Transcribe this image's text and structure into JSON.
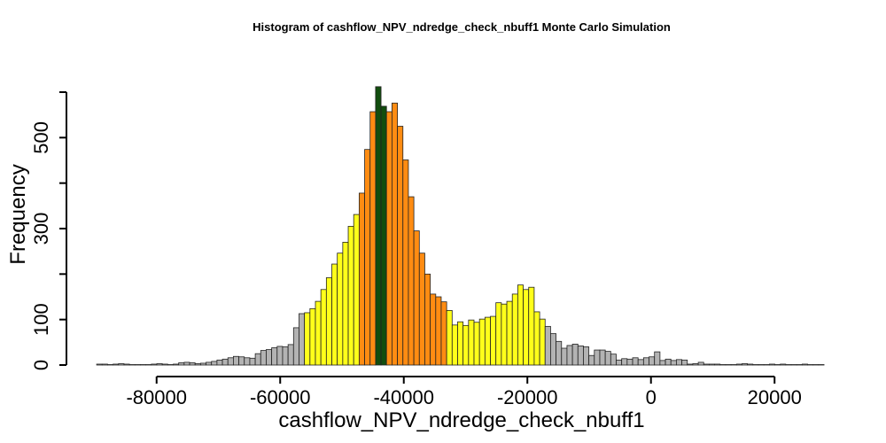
{
  "chart_data": {
    "type": "bar",
    "title": "Histogram of  cashflow_NPV_ndredge_check_nbuff1  Monte Carlo Simulation",
    "xlabel": "cashflow_NPV_ndredge_check_nbuff1",
    "ylabel": "Frequency",
    "xlim": [
      -90000,
      29000
    ],
    "ylim": [
      0,
      600
    ],
    "x_ticks": [
      {
        "value": -80000,
        "label": "-80000"
      },
      {
        "value": -60000,
        "label": "-60000"
      },
      {
        "value": -40000,
        "label": "-40000"
      },
      {
        "value": -20000,
        "label": "-20000"
      },
      {
        "value": 0,
        "label": "0"
      },
      {
        "value": 20000,
        "label": "20000"
      }
    ],
    "y_ticks": [
      {
        "value": 0,
        "label": "0"
      },
      {
        "value": 100,
        "label": "100"
      },
      {
        "value": 200,
        "label": ""
      },
      {
        "value": 300,
        "label": "300"
      },
      {
        "value": 400,
        "label": ""
      },
      {
        "value": 500,
        "label": "500"
      },
      {
        "value": 600,
        "label": ""
      }
    ],
    "bin_width": 885,
    "bin_start": -89700,
    "counts": [
      2,
      2,
      1,
      2,
      3,
      2,
      1,
      1,
      1,
      1,
      2,
      3,
      2,
      1,
      2,
      5,
      6,
      5,
      3,
      4,
      6,
      8,
      11,
      13,
      16,
      19,
      18,
      16,
      15,
      25,
      32,
      34,
      38,
      41,
      40,
      45,
      82,
      113,
      115,
      124,
      140,
      166,
      192,
      222,
      246,
      270,
      305,
      331,
      378,
      474,
      557,
      612,
      569,
      557,
      576,
      525,
      451,
      370,
      295,
      246,
      200,
      156,
      150,
      139,
      120,
      88,
      95,
      87,
      99,
      94,
      101,
      105,
      107,
      137,
      134,
      140,
      156,
      176,
      166,
      171,
      117,
      101,
      85,
      69,
      52,
      37,
      43,
      46,
      42,
      40,
      21,
      33,
      33,
      30,
      24,
      11,
      14,
      13,
      16,
      12,
      16,
      18,
      29,
      10,
      13,
      10,
      12,
      11,
      2,
      3,
      6,
      2,
      2,
      2,
      1,
      1,
      1,
      2,
      3,
      2,
      1,
      1,
      1,
      2,
      1,
      2,
      1,
      1,
      1,
      2,
      1,
      1,
      1
    ],
    "bin_colors": {
      "tails": "#b3b3b3",
      "mid_band": "#ffff1a",
      "inner_band": "#ff8c12",
      "center": "#124d0e"
    },
    "bands": [
      {
        "color_key": "mid_band",
        "x_from": -56000,
        "x_to": -47000
      },
      {
        "color_key": "inner_band",
        "x_from": -47000,
        "x_to": -44600
      },
      {
        "color_key": "center",
        "x_from": -44600,
        "x_to": -42800
      },
      {
        "color_key": "inner_band",
        "x_from": -42800,
        "x_to": -33300
      },
      {
        "color_key": "mid_band",
        "x_from": -33300,
        "x_to": -17000
      }
    ]
  }
}
